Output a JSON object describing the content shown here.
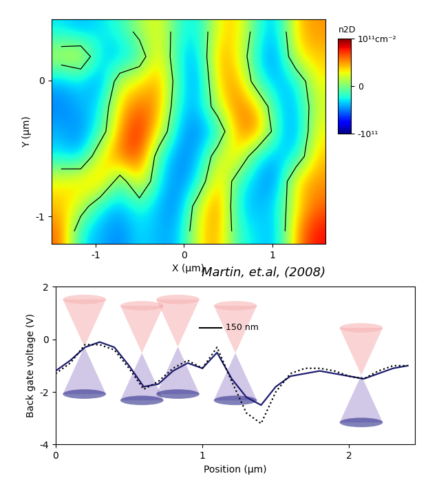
{
  "chart_data": [
    {
      "type": "heatmap",
      "x_label": "X (µm)",
      "y_label": "Y (µm)",
      "annotation": "Martin, et.al, (2008)",
      "xlim": [
        -1.5,
        1.6
      ],
      "ylim": [
        -1.2,
        0.45
      ],
      "xticks": [
        -1,
        0,
        1
      ],
      "yticks": [
        -1,
        0
      ],
      "contour_level": 0,
      "cells": [
        [
          -30000000000.0,
          -40000000000.0,
          -30000000000.0,
          -20000000000.0,
          10000000000.0,
          30000000000.0,
          -20000000000.0,
          -30000000000.0,
          30000000000.0,
          40000000000.0,
          -20000000000.0,
          -40000000000.0,
          40000000000.0,
          50000000000.0
        ],
        [
          20000000000.0,
          30000000000.0,
          -30000000000.0,
          -40000000000.0,
          -20000000000.0,
          40000000000.0,
          -30000000000.0,
          -40000000000.0,
          50000000000.0,
          30000000000.0,
          -30000000000.0,
          -50000000000.0,
          30000000000.0,
          40000000000.0
        ],
        [
          -40000000000.0,
          -30000000000.0,
          -50000000000.0,
          20000000000.0,
          30000000000.0,
          50000000000.0,
          -20000000000.0,
          -50000000000.0,
          40000000000.0,
          50000000000.0,
          -20000000000.0,
          -40000000000.0,
          -30000000000.0,
          30000000000.0
        ],
        [
          -50000000000.0,
          -40000000000.0,
          -30000000000.0,
          40000000000.0,
          60000000000.0,
          50000000000.0,
          -30000000000.0,
          -40000000000.0,
          20000000000.0,
          60000000000.0,
          40000000000.0,
          -30000000000.0,
          -40000000000.0,
          20000000000.0
        ],
        [
          -40000000000.0,
          -50000000000.0,
          -20000000000.0,
          50000000000.0,
          80000000000.0,
          30000000000.0,
          -40000000000.0,
          -50000000000.0,
          -30000000000.0,
          50000000000.0,
          60000000000.0,
          -20000000000.0,
          -50000000000.0,
          30000000000.0
        ],
        [
          -30000000000.0,
          -40000000000.0,
          30000000000.0,
          60000000000.0,
          70000000000.0,
          -20000000000.0,
          -50000000000.0,
          -40000000000.0,
          20000000000.0,
          40000000000.0,
          -30000000000.0,
          -40000000000.0,
          -30000000000.0,
          40000000000.0
        ],
        [
          30000000000.0,
          40000000000.0,
          50000000000.0,
          -20000000000.0,
          40000000000.0,
          -30000000000.0,
          -50000000000.0,
          -30000000000.0,
          50000000000.0,
          -20000000000.0,
          -40000000000.0,
          -50000000000.0,
          40000000000.0,
          50000000000.0
        ],
        [
          40000000000.0,
          20000000000.0,
          -30000000000.0,
          -40000000000.0,
          -20000000000.0,
          -40000000000.0,
          -50000000000.0,
          20000000000.0,
          60000000000.0,
          -30000000000.0,
          -40000000000.0,
          -30000000000.0,
          30000000000.0,
          60000000000.0
        ],
        [
          60000000000.0,
          -30000000000.0,
          -40000000000.0,
          -50000000000.0,
          -30000000000.0,
          -40000000000.0,
          -40000000000.0,
          30000000000.0,
          50000000000.0,
          -20000000000.0,
          -30000000000.0,
          -40000000000.0,
          50000000000.0,
          80000000000.0
        ]
      ],
      "colorbar": {
        "label": "n2D",
        "range": [
          -100000000000.0,
          100000000000.0
        ],
        "ticks": [
          {
            "value": 100000000000.0,
            "label": "10¹¹cm⁻²"
          },
          0,
          {
            "value": -100000000000.0,
            "label": "-10¹¹"
          }
        ]
      }
    },
    {
      "type": "line",
      "x_label": "Position (µm)",
      "y_label": "Back gate voltage (V)",
      "xlim": [
        0,
        2.45
      ],
      "ylim": [
        -4,
        2
      ],
      "xticks": [
        0,
        1,
        2
      ],
      "yticks": [
        -4,
        -2,
        0,
        2
      ],
      "scale_bar": {
        "label": "150 nm",
        "length": 0.15
      },
      "x": [
        0,
        0.1,
        0.2,
        0.3,
        0.4,
        0.5,
        0.6,
        0.7,
        0.8,
        0.9,
        1.0,
        1.1,
        1.2,
        1.3,
        1.4,
        1.5,
        1.6,
        1.7,
        1.8,
        1.9,
        2.0,
        2.1,
        2.2,
        2.3,
        2.4
      ],
      "series": [
        {
          "color": "#1a1a6e",
          "line_style": "solid",
          "values": [
            -1.2,
            -0.8,
            -0.3,
            -0.1,
            -0.3,
            -1.0,
            -1.8,
            -1.7,
            -1.2,
            -0.9,
            -1.1,
            -0.5,
            -1.5,
            -2.2,
            -2.5,
            -1.8,
            -1.4,
            -1.3,
            -1.2,
            -1.3,
            -1.4,
            -1.5,
            -1.3,
            -1.1,
            -1.0
          ]
        },
        {
          "color": "#000000",
          "line_style": "dotted",
          "values": [
            -1.3,
            -0.9,
            -0.2,
            -0.2,
            -0.4,
            -1.1,
            -1.9,
            -1.6,
            -1.1,
            -0.8,
            -1.1,
            -0.3,
            -1.6,
            -2.8,
            -3.2,
            -2.0,
            -1.3,
            -1.1,
            -1.1,
            -1.2,
            -1.4,
            -1.5,
            -1.2,
            -1.0,
            -1.0
          ]
        }
      ]
    }
  ]
}
